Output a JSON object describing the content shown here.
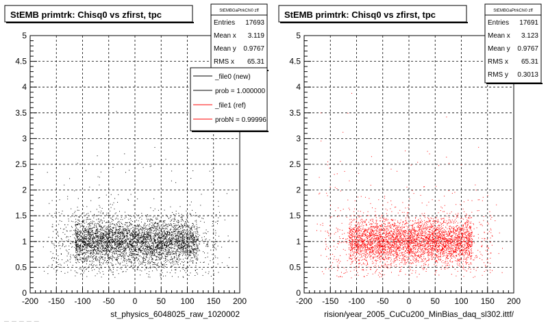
{
  "chart_data": [
    {
      "type": "scatter",
      "title": "StEMB primtrk: Chisq0 vs zfirst, tpc",
      "xlabel": "st_physics_6048025_raw_1020002",
      "ylabel": "",
      "xlim": [
        -200,
        200
      ],
      "ylim": [
        0,
        5
      ],
      "x_ticks": [
        "-200",
        "-150",
        "-100",
        "-50",
        "0",
        "50",
        "100",
        "150",
        "200"
      ],
      "y_ticks": [
        "0",
        "0.5",
        "1",
        "1.5",
        "2",
        "2.5",
        "3",
        "3.5",
        "4",
        "4.5",
        "5"
      ],
      "grid": true,
      "color": "#000000",
      "series": [
        {
          "x": [
            -120,
            -110,
            -100,
            -90,
            -80,
            -70,
            -60,
            -50,
            -40,
            -30,
            -20,
            -10,
            0,
            10,
            20,
            30,
            40,
            50,
            60,
            70,
            80,
            90,
            100,
            110,
            120
          ],
          "y": [
            1.0,
            1.1,
            0.9,
            1.2,
            0.8,
            1.0,
            1.3,
            0.7,
            1.0,
            1.1,
            0.9,
            1.0,
            1.2,
            0.8,
            1.0,
            1.1,
            0.9,
            1.0,
            1.2,
            0.8,
            1.0,
            1.1,
            0.9,
            1.0,
            1.1
          ]
        }
      ],
      "stats": {
        "name": "StEMBGaPtrkChi0 zff",
        "rows": [
          {
            "label": "Entries",
            "value": "17693"
          },
          {
            "label": "Mean x",
            "value": "3.119"
          },
          {
            "label": "Mean y",
            "value": "0.9767"
          },
          {
            "label": "RMS x",
            "value": "65.31"
          }
        ]
      },
      "legend": [
        {
          "label": "_file0 (new)",
          "color": "#000000"
        },
        {
          "label": "prob = 1.000000",
          "color": "#000000"
        },
        {
          "label": "_file1 (ref)",
          "color": "#ff0000"
        },
        {
          "label": "probN = 0.99996",
          "color": "#ff0000"
        }
      ]
    },
    {
      "type": "scatter",
      "title": "StEMB primtrk: Chisq0 vs zfirst, tpc",
      "xlabel": "rision/year_2005_CuCu200_MinBias_daq_sl302.ittf/",
      "ylabel": "",
      "xlim": [
        -200,
        200
      ],
      "ylim": [
        0,
        5
      ],
      "x_ticks": [
        "-200",
        "-150",
        "-100",
        "-50",
        "0",
        "50",
        "100",
        "150",
        "200"
      ],
      "y_ticks": [
        "0",
        "0.5",
        "1",
        "1.5",
        "2",
        "2.5",
        "3",
        "3.5",
        "4",
        "4.5",
        "5"
      ],
      "grid": true,
      "color": "#ff0000",
      "series": [
        {
          "x": [
            -120,
            -110,
            -100,
            -90,
            -80,
            -70,
            -60,
            -50,
            -40,
            -30,
            -20,
            -10,
            0,
            10,
            20,
            30,
            40,
            50,
            60,
            70,
            80,
            90,
            100,
            110,
            120
          ],
          "y": [
            1.0,
            0.9,
            1.1,
            1.0,
            1.2,
            0.8,
            1.0,
            1.1,
            0.9,
            1.3,
            1.0,
            0.8,
            1.1,
            1.0,
            0.9,
            1.2,
            1.0,
            1.1,
            0.8,
            1.0,
            1.1,
            0.9,
            1.0,
            1.2,
            1.0
          ]
        }
      ],
      "stats": {
        "name": "StEMBGaPtrkChi0 zff",
        "rows": [
          {
            "label": "Entries",
            "value": "17691"
          },
          {
            "label": "Mean x",
            "value": "3.123"
          },
          {
            "label": "Mean y",
            "value": "0.9767"
          },
          {
            "label": "RMS x",
            "value": "65.31"
          },
          {
            "label": "RMS y",
            "value": "0.3013"
          }
        ]
      }
    }
  ],
  "footer": {
    "left_text": "— — — — —"
  }
}
